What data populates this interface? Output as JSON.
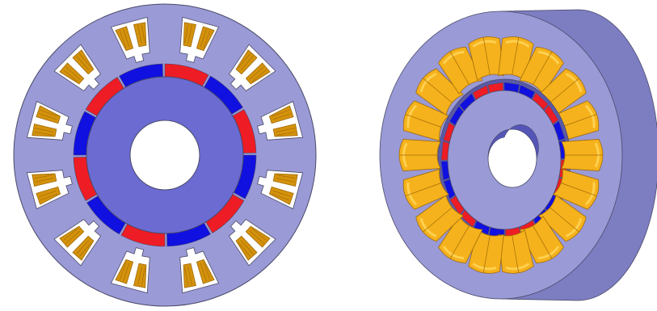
{
  "figure": {
    "views": [
      {
        "id": "cross-section",
        "kind": "front-section"
      },
      {
        "id": "isometric",
        "kind": "3d-render"
      }
    ],
    "stator": {
      "slots": 12,
      "coils_per_slot": 2
    },
    "rotor": {
      "magnet_segments": 12,
      "polarity_pattern": [
        "red",
        "blue"
      ]
    },
    "colors": {
      "stator": "#9a9ad6",
      "stator_dark": "#7d7dc2",
      "rotor": "#6b6bd2",
      "rotor_dark": "#5555b8",
      "magnet_north": "#ee1c24",
      "magnet_south": "#1010e0",
      "coil": "#d4920c",
      "coil_dark": "#a06a08",
      "coil_3d": "#f5b21c",
      "coil_3d_light": "#ffd050",
      "air": "#ffffff",
      "outline": "#4a4a6a"
    }
  }
}
